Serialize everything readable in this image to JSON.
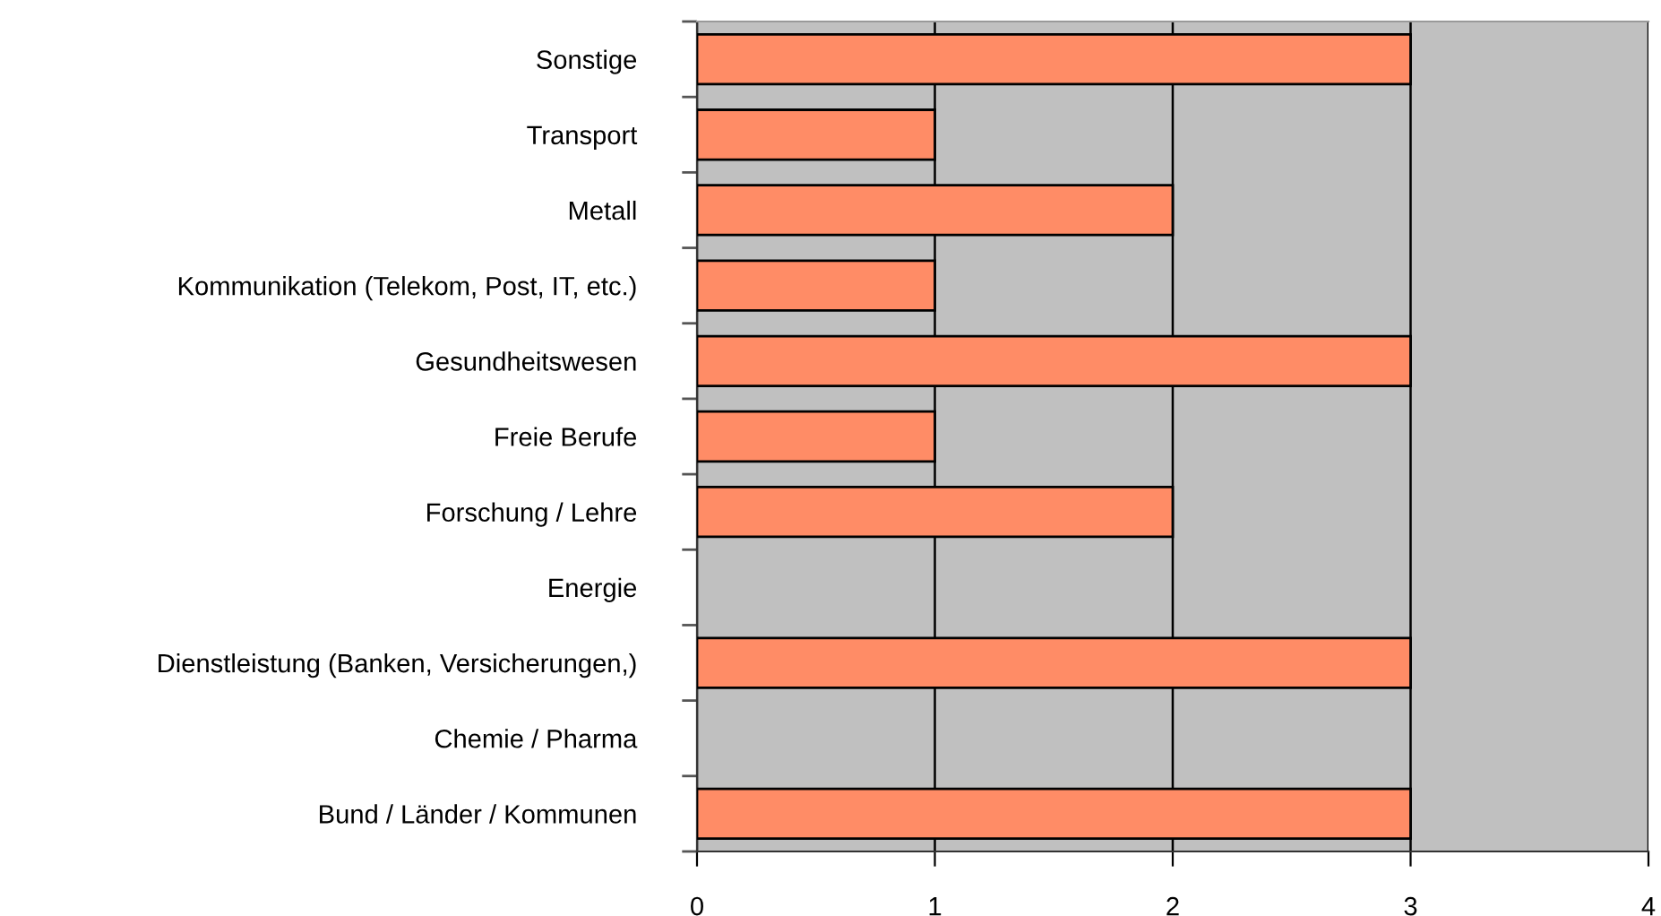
{
  "chart_data": {
    "type": "bar",
    "orientation": "horizontal",
    "categories": [
      "Sonstige",
      "Transport",
      "Metall",
      "Kommunikation (Telekom, Post, IT, etc.)",
      "Gesundheitswesen",
      "Freie Berufe",
      "Forschung / Lehre",
      "Energie",
      "Dienstleistung (Banken, Versicherungen,)",
      "Chemie / Pharma",
      "Bund / Länder / Kommunen"
    ],
    "values": [
      3,
      1,
      2,
      1,
      3,
      1,
      2,
      0,
      3,
      0,
      3
    ],
    "color": "#ff8c66",
    "xlim": [
      0,
      4
    ],
    "xticks": [
      0,
      1,
      2,
      3,
      4
    ],
    "grid": "x"
  }
}
